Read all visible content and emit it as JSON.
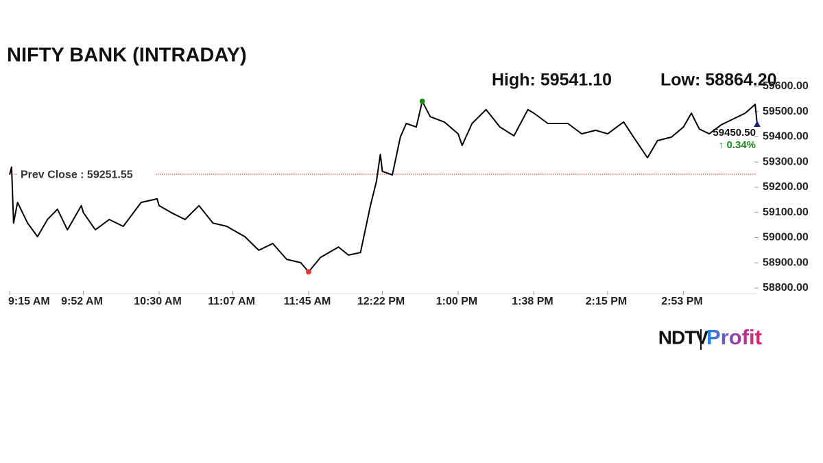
{
  "chart_data": {
    "type": "line",
    "title": "NIFTY BANK (INTRADAY)",
    "high_label": "High: 59541.10",
    "low_label": "Low: 58864.20",
    "prev_close_label": "Prev Close : 59251.55",
    "prev_close": 59251.55,
    "high": {
      "x": "12:42 PM",
      "value": 59541.1
    },
    "low": {
      "x": "11:45 AM",
      "value": 58864.2
    },
    "last_label": "59450.50",
    "change_label": "↑ 0.34%",
    "x": [
      "9:15 AM",
      "9:16 AM",
      "9:17 AM",
      "9:19 AM",
      "9:24 AM",
      "9:29 AM",
      "9:34 AM",
      "9:39 AM",
      "9:44 AM",
      "9:51 AM",
      "9:52 AM",
      "9:58 AM",
      "10:05 AM",
      "10:12 AM",
      "10:21 AM",
      "10:29 AM",
      "10:30 AM",
      "10:36 AM",
      "10:43 AM",
      "10:50 AM",
      "10:57 AM",
      "11:04 AM",
      "11:07 AM",
      "11:13 AM",
      "11:20 AM",
      "11:27 AM",
      "11:34 AM",
      "11:41 AM",
      "11:45 AM",
      "11:51 AM",
      "12:00 PM",
      "12:05 PM",
      "12:11 PM",
      "12:16 PM",
      "12:19 PM",
      "12:21 PM",
      "12:22 PM",
      "12:27 PM",
      "12:31 PM",
      "12:34 PM",
      "12:39 PM",
      "12:42 PM",
      "12:46 PM",
      "12:53 PM",
      "1:00 PM",
      "1:02 PM",
      "1:07 PM",
      "1:14 PM",
      "1:21 PM",
      "1:28 PM",
      "1:35 PM",
      "1:38 PM",
      "1:45 PM",
      "1:55 PM",
      "2:02 PM",
      "2:09 PM",
      "2:15 PM",
      "2:23 PM",
      "2:28 PM",
      "2:35 PM",
      "2:40 PM",
      "2:47 PM",
      "2:53 PM",
      "2:57 PM",
      "3:01 PM",
      "3:06 PM",
      "3:12 PM",
      "3:24 PM",
      "3:29 PM",
      "3:30 PM"
    ],
    "values": [
      59250,
      59280,
      59058,
      59140,
      59058,
      59004,
      59072,
      59113,
      59031,
      59127,
      59100,
      59031,
      59072,
      59045,
      59140,
      59154,
      59127,
      59100,
      59072,
      59127,
      59058,
      59045,
      59031,
      59004,
      58950,
      58977,
      58914,
      58901,
      58864.2,
      58922,
      58963,
      58931,
      58941,
      59127,
      59222,
      59331,
      59263,
      59249,
      59399,
      59453,
      59439,
      59541.1,
      59480,
      59459,
      59412,
      59366,
      59453,
      59508,
      59439,
      59404,
      59508,
      59494,
      59453,
      59453,
      59412,
      59426,
      59412,
      59459,
      59399,
      59317,
      59385,
      59399,
      59439,
      59494,
      59431,
      59412,
      59448,
      59494,
      59529,
      59450.5
    ],
    "color": "#000000",
    "ylim": [
      58800,
      59600
    ],
    "yticks": [
      {
        "value": 58800,
        "label": "58800.00"
      },
      {
        "value": 58900,
        "label": "58900.00"
      },
      {
        "value": 59000,
        "label": "59000.00"
      },
      {
        "value": 59100,
        "label": "59100.00"
      },
      {
        "value": 59200,
        "label": "59200.00"
      },
      {
        "value": 59300,
        "label": "59300.00"
      },
      {
        "value": 59400,
        "label": "59400.00"
      },
      {
        "value": 59500,
        "label": "59500.00"
      },
      {
        "value": 59600,
        "label": "59600.00"
      }
    ],
    "xticks": [
      "9:15 AM",
      "9:52 AM",
      "10:30 AM",
      "11:07 AM",
      "11:45 AM",
      "12:22 PM",
      "1:00 PM",
      "1:38 PM",
      "2:15 PM",
      "2:53 PM"
    ]
  },
  "branding": {
    "left": "NDTV",
    "right": "Profit"
  }
}
